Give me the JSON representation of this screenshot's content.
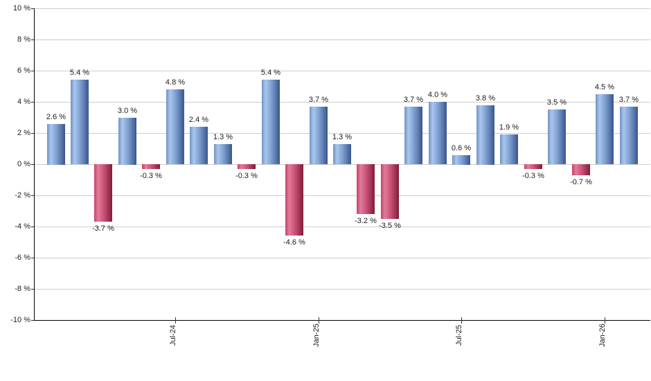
{
  "chart_data": {
    "type": "bar",
    "title": "",
    "xlabel": "",
    "ylabel": "",
    "ylim": [
      -10,
      10
    ],
    "y_tick_step": 2,
    "y_tick_labels": [
      "10 %",
      "8 %",
      "6 %",
      "4 %",
      "2 %",
      "0 %",
      "-2 %",
      "-4 %",
      "-6 %",
      "-8 %",
      "-10 %"
    ],
    "y_tick_values": [
      10,
      8,
      6,
      4,
      2,
      0,
      -2,
      -4,
      -6,
      -8,
      -10
    ],
    "values": [
      2.6,
      5.4,
      -3.7,
      3.0,
      -0.3,
      4.8,
      2.4,
      1.3,
      -0.3,
      5.4,
      -4.6,
      3.7,
      1.3,
      -3.2,
      -3.5,
      3.7,
      4.0,
      0.6,
      3.8,
      1.9,
      -0.3,
      3.5,
      -0.7,
      4.5,
      3.7
    ],
    "value_label_suffix": " %",
    "x_tick_labels": [
      {
        "bar_index": 5,
        "label": "Jul-24"
      },
      {
        "bar_index": 11,
        "label": "Jan-25"
      },
      {
        "bar_index": 17,
        "label": "Jul-25"
      },
      {
        "bar_index": 23,
        "label": "Jan-26"
      }
    ],
    "grid": true,
    "legend": false,
    "colors": {
      "positive_bar": {
        "edge_left": "#7293c3",
        "highlight": "#a9c6ee",
        "mid": "#7b9cce",
        "dark_right": "#3a568c"
      },
      "negative_bar": {
        "edge_left": "#cb4066",
        "highlight": "#e07c9b",
        "mid": "#c94f74",
        "dark_right": "#7e1d37"
      },
      "gridline": "#cccccc",
      "axis": "#000000",
      "label_text": "#1a1a1a"
    }
  }
}
